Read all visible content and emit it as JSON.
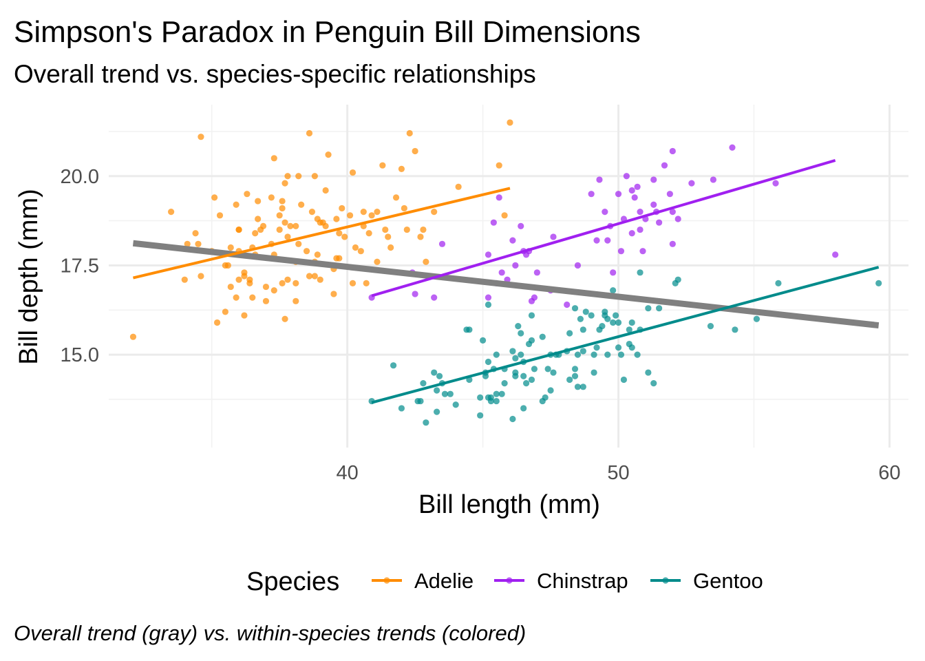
{
  "chart_data": {
    "type": "scatter",
    "title": "Simpson's Paradox in Penguin Bill Dimensions",
    "subtitle": "Overall trend vs. species-specific relationships",
    "xlabel": "Bill length (mm)",
    "ylabel": "Bill depth (mm)",
    "caption": "Overall trend (gray) vs. within-species trends (colored)",
    "xlim": [
      31.2,
      60.7
    ],
    "ylim": [
      12.4,
      22.0
    ],
    "x_ticks": [
      40,
      50,
      60
    ],
    "x_tick_labels": [
      "40",
      "50",
      "60"
    ],
    "y_ticks": [
      15.0,
      17.5,
      20.0
    ],
    "y_tick_labels": [
      "15.0",
      "17.5",
      "20.0"
    ],
    "grid": true,
    "legend": {
      "title": "Species",
      "position": "bottom",
      "entries": [
        "Adelie",
        "Chinstrap",
        "Gentoo"
      ]
    },
    "series": [
      {
        "name": "Adelie",
        "color": "#FF8C00",
        "points": [
          [
            32.1,
            15.5
          ],
          [
            33.5,
            19.0
          ],
          [
            34.0,
            17.1
          ],
          [
            34.1,
            18.1
          ],
          [
            34.4,
            18.4
          ],
          [
            34.5,
            18.1
          ],
          [
            34.6,
            21.1
          ],
          [
            34.6,
            17.2
          ],
          [
            35.0,
            17.9
          ],
          [
            35.1,
            19.4
          ],
          [
            35.2,
            15.9
          ],
          [
            35.3,
            18.9
          ],
          [
            35.5,
            17.5
          ],
          [
            35.5,
            16.2
          ],
          [
            35.6,
            17.5
          ],
          [
            35.7,
            16.9
          ],
          [
            35.7,
            18.0
          ],
          [
            35.9,
            16.6
          ],
          [
            35.9,
            19.2
          ],
          [
            36.0,
            18.5
          ],
          [
            36.0,
            17.9
          ],
          [
            36.0,
            17.1
          ],
          [
            36.0,
            18.5
          ],
          [
            36.2,
            17.2
          ],
          [
            36.2,
            16.1
          ],
          [
            36.2,
            17.3
          ],
          [
            36.3,
            19.5
          ],
          [
            36.4,
            17.0
          ],
          [
            36.4,
            17.1
          ],
          [
            36.5,
            18.0
          ],
          [
            36.5,
            16.6
          ],
          [
            36.6,
            18.4
          ],
          [
            36.6,
            17.8
          ],
          [
            36.7,
            19.3
          ],
          [
            36.7,
            18.8
          ],
          [
            36.8,
            18.5
          ],
          [
            36.9,
            18.6
          ],
          [
            37.0,
            16.9
          ],
          [
            37.0,
            16.5
          ],
          [
            37.2,
            18.1
          ],
          [
            37.2,
            19.4
          ],
          [
            37.3,
            20.5
          ],
          [
            37.3,
            16.8
          ],
          [
            37.3,
            17.8
          ],
          [
            37.5,
            18.9
          ],
          [
            37.5,
            18.5
          ],
          [
            37.6,
            19.1
          ],
          [
            37.6,
            17.0
          ],
          [
            37.6,
            19.3
          ],
          [
            37.7,
            18.7
          ],
          [
            37.7,
            16.0
          ],
          [
            37.7,
            19.8
          ],
          [
            37.8,
            18.3
          ],
          [
            37.8,
            17.1
          ],
          [
            37.8,
            20.0
          ],
          [
            37.9,
            18.6
          ],
          [
            38.1,
            18.6
          ],
          [
            38.1,
            17.0
          ],
          [
            38.1,
            16.5
          ],
          [
            38.1,
            17.6
          ],
          [
            38.2,
            18.1
          ],
          [
            38.2,
            20.0
          ],
          [
            38.3,
            19.2
          ],
          [
            38.5,
            17.9
          ],
          [
            38.6,
            21.2
          ],
          [
            38.6,
            17.2
          ],
          [
            38.7,
            19.0
          ],
          [
            38.8,
            17.2
          ],
          [
            38.8,
            20.0
          ],
          [
            38.8,
            17.6
          ],
          [
            38.9,
            18.8
          ],
          [
            38.9,
            17.8
          ],
          [
            39.0,
            17.1
          ],
          [
            39.0,
            18.7
          ],
          [
            39.1,
            18.7
          ],
          [
            39.2,
            19.6
          ],
          [
            39.2,
            18.6
          ],
          [
            39.3,
            20.6
          ],
          [
            39.5,
            17.4
          ],
          [
            39.5,
            16.7
          ],
          [
            39.6,
            17.7
          ],
          [
            39.6,
            18.8
          ],
          [
            39.7,
            18.4
          ],
          [
            39.7,
            17.7
          ],
          [
            39.8,
            19.1
          ],
          [
            39.9,
            18.3
          ],
          [
            40.1,
            18.9
          ],
          [
            40.2,
            17.0
          ],
          [
            40.2,
            20.1
          ],
          [
            40.3,
            18.0
          ],
          [
            40.5,
            17.9
          ],
          [
            40.6,
            18.6
          ],
          [
            40.6,
            19.0
          ],
          [
            40.7,
            17.0
          ],
          [
            40.8,
            18.4
          ],
          [
            40.9,
            18.9
          ],
          [
            41.1,
            17.6
          ],
          [
            41.1,
            19.0
          ],
          [
            41.3,
            20.3
          ],
          [
            41.4,
            18.5
          ],
          [
            41.5,
            18.3
          ],
          [
            41.6,
            18.0
          ],
          [
            41.8,
            19.4
          ],
          [
            42.0,
            20.2
          ],
          [
            42.1,
            19.1
          ],
          [
            42.2,
            18.5
          ],
          [
            42.3,
            21.2
          ],
          [
            42.5,
            20.7
          ],
          [
            42.7,
            18.3
          ],
          [
            42.8,
            18.5
          ],
          [
            42.9,
            17.6
          ],
          [
            43.2,
            19.0
          ],
          [
            44.1,
            19.7
          ],
          [
            45.6,
            20.3
          ],
          [
            45.8,
            18.9
          ],
          [
            46.0,
            21.5
          ]
        ],
        "trend": {
          "x": [
            32.1,
            46.0
          ],
          "y": [
            17.15,
            19.66
          ]
        }
      },
      {
        "name": "Chinstrap",
        "color": "#A020F0",
        "points": [
          [
            40.9,
            16.6
          ],
          [
            42.4,
            17.3
          ],
          [
            42.5,
            16.7
          ],
          [
            43.2,
            16.6
          ],
          [
            43.5,
            18.1
          ],
          [
            45.2,
            17.8
          ],
          [
            45.2,
            16.6
          ],
          [
            45.4,
            18.7
          ],
          [
            45.5,
            17.0
          ],
          [
            45.6,
            19.4
          ],
          [
            45.7,
            17.3
          ],
          [
            45.9,
            17.1
          ],
          [
            46.1,
            18.2
          ],
          [
            46.2,
            17.5
          ],
          [
            46.4,
            18.6
          ],
          [
            46.5,
            17.9
          ],
          [
            46.6,
            17.8
          ],
          [
            46.7,
            17.9
          ],
          [
            46.8,
            16.5
          ],
          [
            46.9,
            16.6
          ],
          [
            47.0,
            17.3
          ],
          [
            47.5,
            16.8
          ],
          [
            47.6,
            18.3
          ],
          [
            48.1,
            16.4
          ],
          [
            48.5,
            17.5
          ],
          [
            49.0,
            19.5
          ],
          [
            49.2,
            18.2
          ],
          [
            49.3,
            19.9
          ],
          [
            49.5,
            19.0
          ],
          [
            49.6,
            18.2
          ],
          [
            49.7,
            18.6
          ],
          [
            49.8,
            17.3
          ],
          [
            50.0,
            19.5
          ],
          [
            50.1,
            17.9
          ],
          [
            50.2,
            18.8
          ],
          [
            50.3,
            20.0
          ],
          [
            50.5,
            18.4
          ],
          [
            50.5,
            19.6
          ],
          [
            50.6,
            19.4
          ],
          [
            50.7,
            19.7
          ],
          [
            50.8,
            18.5
          ],
          [
            50.8,
            19.0
          ],
          [
            50.9,
            17.9
          ],
          [
            51.0,
            18.8
          ],
          [
            51.3,
            19.2
          ],
          [
            51.3,
            19.9
          ],
          [
            51.4,
            19.0
          ],
          [
            51.5,
            18.7
          ],
          [
            51.7,
            20.3
          ],
          [
            51.9,
            19.5
          ],
          [
            52.0,
            18.1
          ],
          [
            52.0,
            19.0
          ],
          [
            52.0,
            20.7
          ],
          [
            52.2,
            18.8
          ],
          [
            52.7,
            19.8
          ],
          [
            53.5,
            19.9
          ],
          [
            54.2,
            20.8
          ],
          [
            55.8,
            19.8
          ],
          [
            58.0,
            17.8
          ]
        ],
        "trend": {
          "x": [
            40.9,
            58.0
          ],
          "y": [
            16.65,
            20.44
          ]
        }
      },
      {
        "name": "Gentoo",
        "color": "#008B8B",
        "points": [
          [
            40.9,
            13.7
          ],
          [
            41.7,
            14.7
          ],
          [
            42.0,
            13.5
          ],
          [
            42.6,
            13.7
          ],
          [
            42.7,
            13.7
          ],
          [
            42.8,
            14.2
          ],
          [
            42.9,
            13.1
          ],
          [
            43.2,
            14.5
          ],
          [
            43.3,
            13.4
          ],
          [
            43.3,
            14.0
          ],
          [
            43.4,
            14.4
          ],
          [
            43.5,
            14.2
          ],
          [
            43.6,
            13.9
          ],
          [
            43.8,
            13.9
          ],
          [
            44.0,
            13.6
          ],
          [
            44.4,
            15.7
          ],
          [
            44.5,
            14.3
          ],
          [
            44.5,
            15.7
          ],
          [
            44.9,
            13.8
          ],
          [
            44.9,
            13.3
          ],
          [
            45.0,
            15.4
          ],
          [
            45.1,
            14.5
          ],
          [
            45.1,
            14.4
          ],
          [
            45.2,
            16.4
          ],
          [
            45.2,
            13.8
          ],
          [
            45.2,
            14.8
          ],
          [
            45.3,
            13.7
          ],
          [
            45.3,
            13.8
          ],
          [
            45.4,
            14.6
          ],
          [
            45.5,
            13.7
          ],
          [
            45.5,
            13.9
          ],
          [
            45.5,
            15.0
          ],
          [
            45.7,
            13.9
          ],
          [
            45.8,
            14.2
          ],
          [
            45.8,
            14.6
          ],
          [
            46.1,
            13.2
          ],
          [
            46.1,
            15.1
          ],
          [
            46.2,
            14.5
          ],
          [
            46.2,
            14.4
          ],
          [
            46.2,
            14.9
          ],
          [
            46.3,
            15.8
          ],
          [
            46.4,
            15.0
          ],
          [
            46.4,
            15.6
          ],
          [
            46.5,
            13.5
          ],
          [
            46.5,
            14.4
          ],
          [
            46.5,
            14.8
          ],
          [
            46.6,
            14.2
          ],
          [
            46.7,
            15.3
          ],
          [
            46.8,
            14.3
          ],
          [
            46.8,
            15.4
          ],
          [
            46.8,
            16.1
          ],
          [
            46.9,
            14.6
          ],
          [
            47.2,
            13.7
          ],
          [
            47.2,
            15.5
          ],
          [
            47.3,
            13.8
          ],
          [
            47.4,
            14.6
          ],
          [
            47.5,
            14.0
          ],
          [
            47.5,
            15.0
          ],
          [
            47.6,
            14.5
          ],
          [
            47.7,
            15.0
          ],
          [
            47.8,
            15.0
          ],
          [
            48.1,
            15.1
          ],
          [
            48.2,
            14.3
          ],
          [
            48.2,
            15.6
          ],
          [
            48.4,
            14.4
          ],
          [
            48.4,
            14.6
          ],
          [
            48.4,
            16.3
          ],
          [
            48.5,
            14.1
          ],
          [
            48.5,
            15.0
          ],
          [
            48.6,
            16.0
          ],
          [
            48.7,
            14.1
          ],
          [
            48.7,
            15.1
          ],
          [
            48.7,
            15.7
          ],
          [
            48.8,
            16.2
          ],
          [
            49.0,
            16.1
          ],
          [
            49.1,
            14.5
          ],
          [
            49.1,
            15.0
          ],
          [
            49.2,
            15.2
          ],
          [
            49.3,
            15.7
          ],
          [
            49.4,
            15.8
          ],
          [
            49.5,
            16.1
          ],
          [
            49.5,
            16.2
          ],
          [
            49.6,
            15.0
          ],
          [
            49.6,
            16.0
          ],
          [
            49.8,
            15.9
          ],
          [
            49.8,
            16.8
          ],
          [
            49.9,
            16.1
          ],
          [
            50.0,
            15.2
          ],
          [
            50.0,
            15.9
          ],
          [
            50.1,
            15.0
          ],
          [
            50.2,
            14.3
          ],
          [
            50.4,
            15.3
          ],
          [
            50.4,
            15.7
          ],
          [
            50.5,
            15.2
          ],
          [
            50.5,
            15.9
          ],
          [
            50.7,
            15.0
          ],
          [
            50.8,
            15.7
          ],
          [
            50.8,
            17.3
          ],
          [
            51.1,
            14.5
          ],
          [
            51.1,
            16.3
          ],
          [
            51.3,
            14.2
          ],
          [
            51.5,
            16.3
          ],
          [
            52.1,
            17.0
          ],
          [
            52.2,
            17.1
          ],
          [
            53.4,
            15.8
          ],
          [
            54.3,
            15.7
          ],
          [
            55.1,
            16.0
          ],
          [
            55.9,
            17.0
          ],
          [
            59.6,
            17.0
          ]
        ],
        "trend": {
          "x": [
            40.9,
            59.6
          ],
          "y": [
            13.66,
            17.45
          ]
        }
      }
    ],
    "overall_trend": {
      "color": "#808080",
      "x": [
        32.1,
        59.6
      ],
      "y": [
        18.12,
        15.82
      ]
    }
  }
}
